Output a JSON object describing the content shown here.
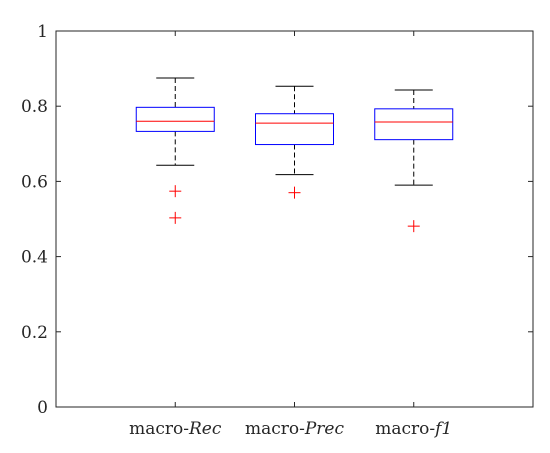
{
  "chart_data": {
    "type": "box",
    "title": "",
    "xlabel": "",
    "ylabel": "",
    "ylim": [
      0,
      1
    ],
    "yticks": [
      "0",
      "0.2",
      "0.4",
      "0.6",
      "0.8",
      "1"
    ],
    "grid": false,
    "colors": {
      "box": "#0000ff",
      "median": "#ff0000",
      "whisker": "#000000",
      "outlier": "#ff0000",
      "axis": "#262626"
    },
    "categories": [
      {
        "prefix": "macro-",
        "suffix": "Rec",
        "whisker_low": 0.643,
        "q1": 0.733,
        "median": 0.76,
        "q3": 0.797,
        "whisker_high": 0.875,
        "outliers": [
          0.574,
          0.503
        ]
      },
      {
        "prefix": "macro-",
        "suffix": "Prec",
        "whisker_low": 0.618,
        "q1": 0.698,
        "median": 0.755,
        "q3": 0.78,
        "whisker_high": 0.853,
        "outliers": [
          0.57
        ]
      },
      {
        "prefix": "macro-",
        "suffix": "f1",
        "whisker_low": 0.59,
        "q1": 0.711,
        "median": 0.758,
        "q3": 0.793,
        "whisker_high": 0.843,
        "outliers": [
          0.481
        ]
      }
    ]
  }
}
